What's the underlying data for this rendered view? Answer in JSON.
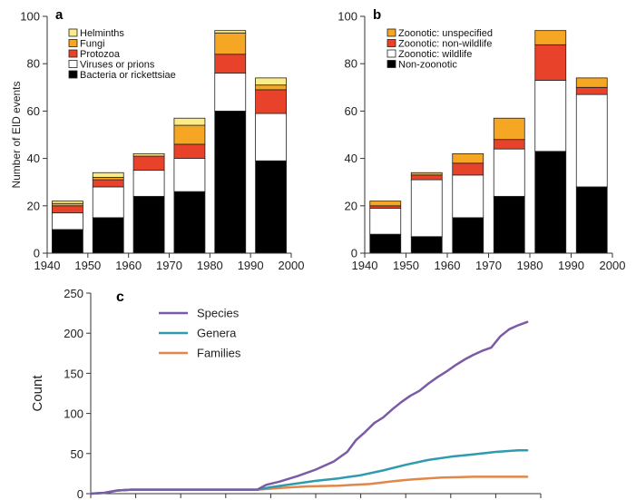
{
  "chart_data": [
    {
      "panel": "a",
      "type": "bar",
      "stacked": true,
      "title": "",
      "xlabel": "",
      "ylabel": "Number of EID events",
      "categories": [
        "1940s",
        "1950s",
        "1960s",
        "1970s",
        "1980s",
        "1990s"
      ],
      "xlim": [
        1940,
        2000
      ],
      "x_ticks": [
        1940,
        1950,
        1960,
        1970,
        1980,
        1990,
        2000
      ],
      "ylim": [
        0,
        100
      ],
      "y_ticks": [
        0,
        20,
        40,
        60,
        80,
        100
      ],
      "legend_position": "top-left",
      "series": [
        {
          "name": "Bacteria or rickettsiae",
          "color": "#000000",
          "values": [
            10,
            15,
            24,
            26,
            60,
            39
          ]
        },
        {
          "name": "Viruses or prions",
          "color": "#ffffff",
          "values": [
            7,
            13,
            11,
            14,
            16,
            20
          ]
        },
        {
          "name": "Protozoa",
          "color": "#e8432a",
          "values": [
            3,
            3,
            6,
            6,
            8,
            10
          ]
        },
        {
          "name": "Fungi",
          "color": "#f5a623",
          "values": [
            1,
            1,
            0,
            8,
            9,
            2
          ]
        },
        {
          "name": "Helminths",
          "color": "#fbec8a",
          "values": [
            1,
            2,
            1,
            3,
            1,
            3
          ]
        }
      ]
    },
    {
      "panel": "b",
      "type": "bar",
      "stacked": true,
      "title": "",
      "xlabel": "",
      "ylabel": "",
      "categories": [
        "1940s",
        "1950s",
        "1960s",
        "1970s",
        "1980s",
        "1990s"
      ],
      "xlim": [
        1940,
        2000
      ],
      "x_ticks": [
        1940,
        1950,
        1960,
        1970,
        1980,
        1990,
        2000
      ],
      "ylim": [
        0,
        100
      ],
      "y_ticks": [
        0,
        20,
        40,
        60,
        80,
        100
      ],
      "legend_position": "top-left",
      "series": [
        {
          "name": "Non-zoonotic",
          "color": "#000000",
          "values": [
            8,
            7,
            15,
            24,
            43,
            28
          ]
        },
        {
          "name": "Zoonotic: wildlife",
          "color": "#ffffff",
          "values": [
            11,
            24,
            18,
            20,
            30,
            39
          ]
        },
        {
          "name": "Zoonotic: non-wildlife",
          "color": "#e8432a",
          "values": [
            1,
            2,
            5,
            4,
            15,
            3
          ]
        },
        {
          "name": "Zoonotic: unspecified",
          "color": "#f5a623",
          "values": [
            2,
            1,
            4,
            9,
            6,
            4
          ]
        }
      ]
    },
    {
      "panel": "c",
      "type": "line",
      "title": "",
      "xlabel": "",
      "ylabel": "Count",
      "xlim": [
        0,
        100
      ],
      "ylim": [
        0,
        250
      ],
      "y_ticks": [
        0,
        50,
        100,
        150,
        200,
        250
      ],
      "legend_position": "top-left",
      "series": [
        {
          "name": "Species",
          "color": "#7b5aa6",
          "x": [
            0,
            3,
            6,
            9,
            12,
            20,
            30,
            37,
            39,
            42,
            46,
            50,
            54,
            57,
            59,
            61,
            63,
            65,
            67,
            69,
            71,
            73,
            75,
            77,
            79,
            81,
            83,
            85,
            87,
            89,
            91,
            93,
            95,
            97
          ],
          "y": [
            0,
            1,
            4,
            5,
            5,
            5,
            5,
            5,
            11,
            15,
            22,
            30,
            40,
            52,
            67,
            77,
            88,
            95,
            105,
            114,
            122,
            128,
            137,
            145,
            152,
            160,
            167,
            173,
            178,
            182,
            196,
            205,
            210,
            214
          ]
        },
        {
          "name": "Genera",
          "color": "#2e9bb0",
          "x": [
            0,
            3,
            6,
            9,
            12,
            20,
            30,
            37,
            40,
            45,
            50,
            55,
            60,
            65,
            70,
            75,
            80,
            85,
            90,
            95,
            97
          ],
          "y": [
            0,
            1,
            4,
            5,
            5,
            5,
            5,
            5,
            8,
            12,
            16,
            19,
            23,
            29,
            36,
            42,
            46,
            49,
            52,
            54,
            54
          ]
        },
        {
          "name": "Families",
          "color": "#e0874a",
          "x": [
            0,
            3,
            6,
            9,
            12,
            20,
            30,
            37,
            42,
            48,
            55,
            62,
            68,
            72,
            78,
            85,
            90,
            97
          ],
          "y": [
            0,
            1,
            4,
            5,
            5,
            5,
            5,
            5,
            7,
            9,
            10,
            12,
            16,
            18,
            20,
            21,
            21,
            21
          ]
        }
      ]
    }
  ]
}
